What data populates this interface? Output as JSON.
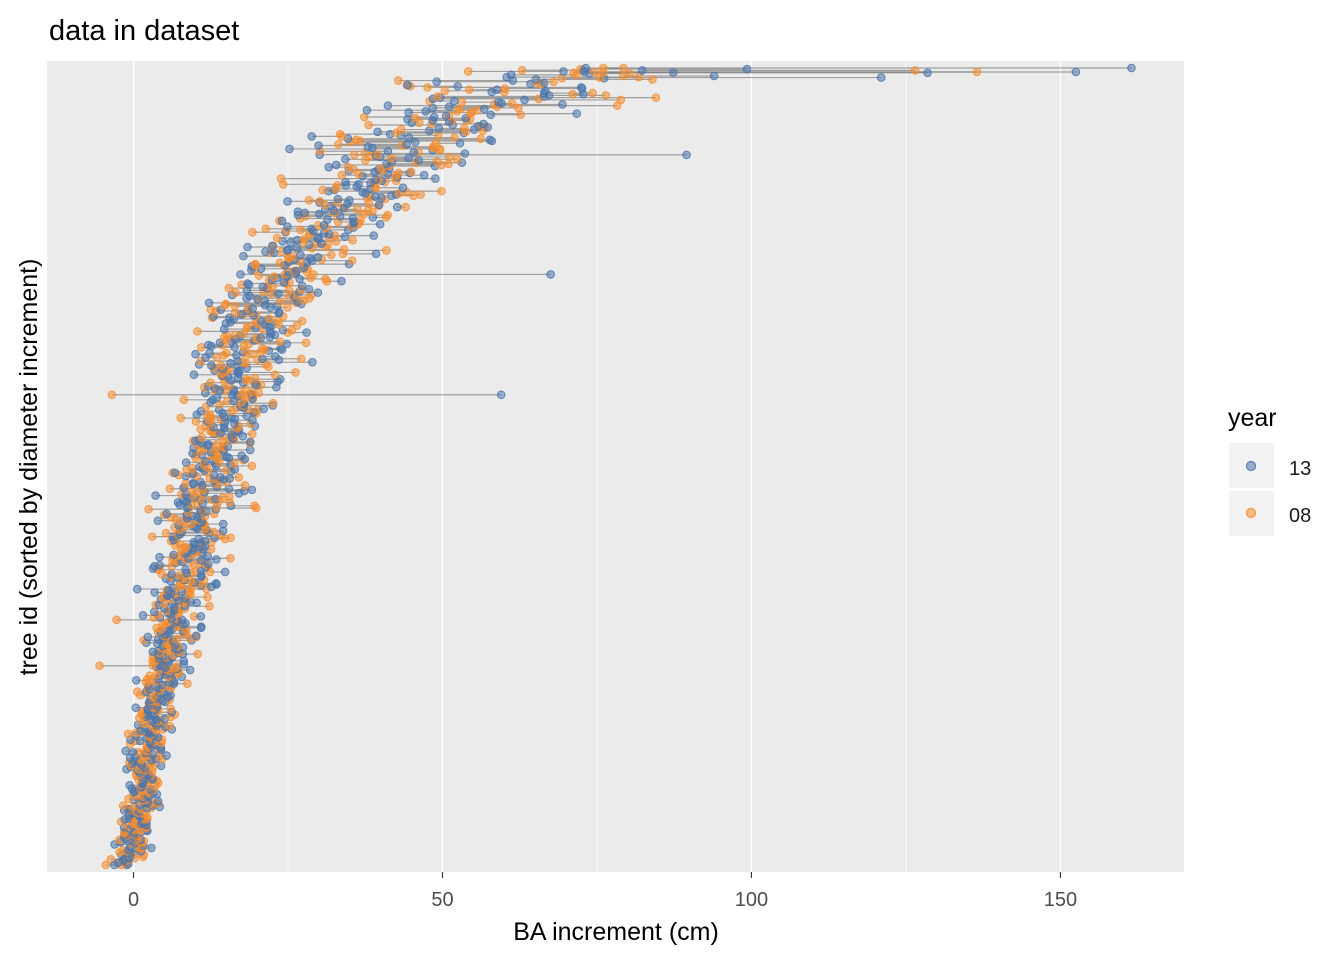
{
  "chart_data": {
    "type": "scatter",
    "title": "data in dataset",
    "xlabel": "BA increment (cm)",
    "ylabel": "tree id (sorted by diameter increment)",
    "xlim": [
      -14,
      170
    ],
    "x_ticks": [
      0,
      50,
      100,
      150
    ],
    "y_ticks": [],
    "grid": true,
    "legend": {
      "title": "year",
      "placement": "right",
      "entries": [
        {
          "label": "13",
          "color": "#4a76ad"
        },
        {
          "label": "08",
          "color": "#f68d2e"
        }
      ]
    },
    "segment_color": "#7f7f7f",
    "description_note": "Dumbbell/segment scatter: one row per tree (~700 rows), each with a 13 and 08 BA increment value connected by a gray segment. Values summarized by row-position bands (0 = bottom row, 1 = top row).",
    "n_trees": 700,
    "series": [
      {
        "name": "13",
        "color": "#4a76ad"
      },
      {
        "name": "08",
        "color": "#f68d2e"
      }
    ],
    "center_profile": {
      "row_fraction": [
        0.0,
        0.05,
        0.1,
        0.15,
        0.2,
        0.25,
        0.3,
        0.35,
        0.4,
        0.45,
        0.5,
        0.55,
        0.6,
        0.65,
        0.7,
        0.75,
        0.8,
        0.85,
        0.9,
        0.95,
        1.0
      ],
      "ba_increment": [
        -1,
        0.5,
        1.5,
        2.5,
        3.5,
        5,
        6.5,
        8,
        9.5,
        11,
        13,
        15,
        17,
        19,
        22,
        26,
        31,
        37,
        44,
        55,
        75
      ]
    },
    "spread_profile": {
      "row_fraction": [
        0.0,
        0.2,
        0.4,
        0.6,
        0.8,
        0.9,
        1.0
      ],
      "sd": [
        1.5,
        2.5,
        4,
        5,
        7,
        9,
        18
      ]
    },
    "notable_points": [
      {
        "series": "13",
        "x": 161.5,
        "row_fraction": 1.0
      },
      {
        "series": "13",
        "x": 152.5,
        "row_fraction": 0.995
      },
      {
        "series": "08",
        "x": 136.5,
        "row_fraction": 0.995
      },
      {
        "series": "08",
        "x": 126.5,
        "row_fraction": 0.997
      },
      {
        "series": "13",
        "x": 128.5,
        "row_fraction": 0.994
      },
      {
        "series": "13",
        "x": 121,
        "row_fraction": 0.988
      },
      {
        "series": "13",
        "x": 89.5,
        "row_fraction": 0.891
      },
      {
        "series": "13",
        "x": 67.5,
        "row_fraction": 0.741
      },
      {
        "series": "13",
        "x": 59.5,
        "row_fraction": 0.59
      },
      {
        "series": "08",
        "x": -4.5,
        "row_fraction": 0.0
      },
      {
        "series": "08",
        "x": -5.5,
        "row_fraction": 0.25
      },
      {
        "series": "08",
        "x": -3.5,
        "row_fraction": 0.59
      }
    ]
  }
}
